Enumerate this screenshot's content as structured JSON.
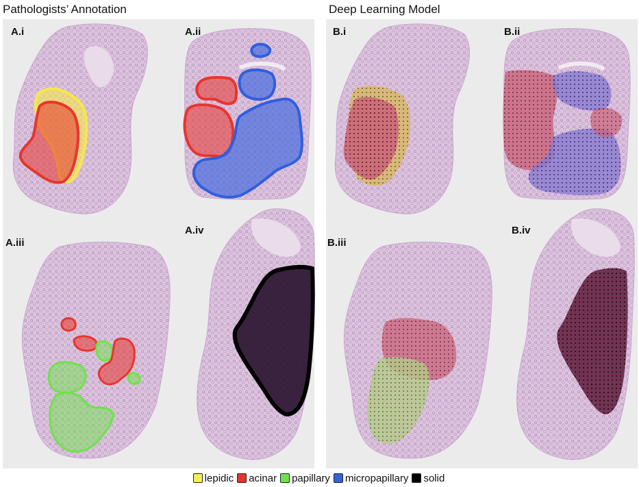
{
  "titles": {
    "left": "Pathologists’ Annotation",
    "right": "Deep Learning Model"
  },
  "panels": {
    "a_i": "A.i",
    "a_ii": "A.ii",
    "a_iii": "A.iii",
    "a_iv": "A.iv",
    "b_i": "B.i",
    "b_ii": "B.ii",
    "b_iii": "B.iii",
    "b_iv": "B.iv"
  },
  "legend": [
    {
      "label": "lepidic",
      "color": "#f7ee55"
    },
    {
      "label": "acinar",
      "color": "#e8352c"
    },
    {
      "label": "papillary",
      "color": "#6ee34a"
    },
    {
      "label": "micropapillary",
      "color": "#3464d6"
    },
    {
      "label": "solid",
      "color": "#000000"
    }
  ],
  "colors": {
    "tissue": "#d4b6d6",
    "tissue_dark": "#a87fb2",
    "lepidic": "#f5e84a",
    "acinar": "#e8352c",
    "papillary": "#6ee34a",
    "micropapillary": "#2f5fe0",
    "solid": "#2a1530"
  }
}
